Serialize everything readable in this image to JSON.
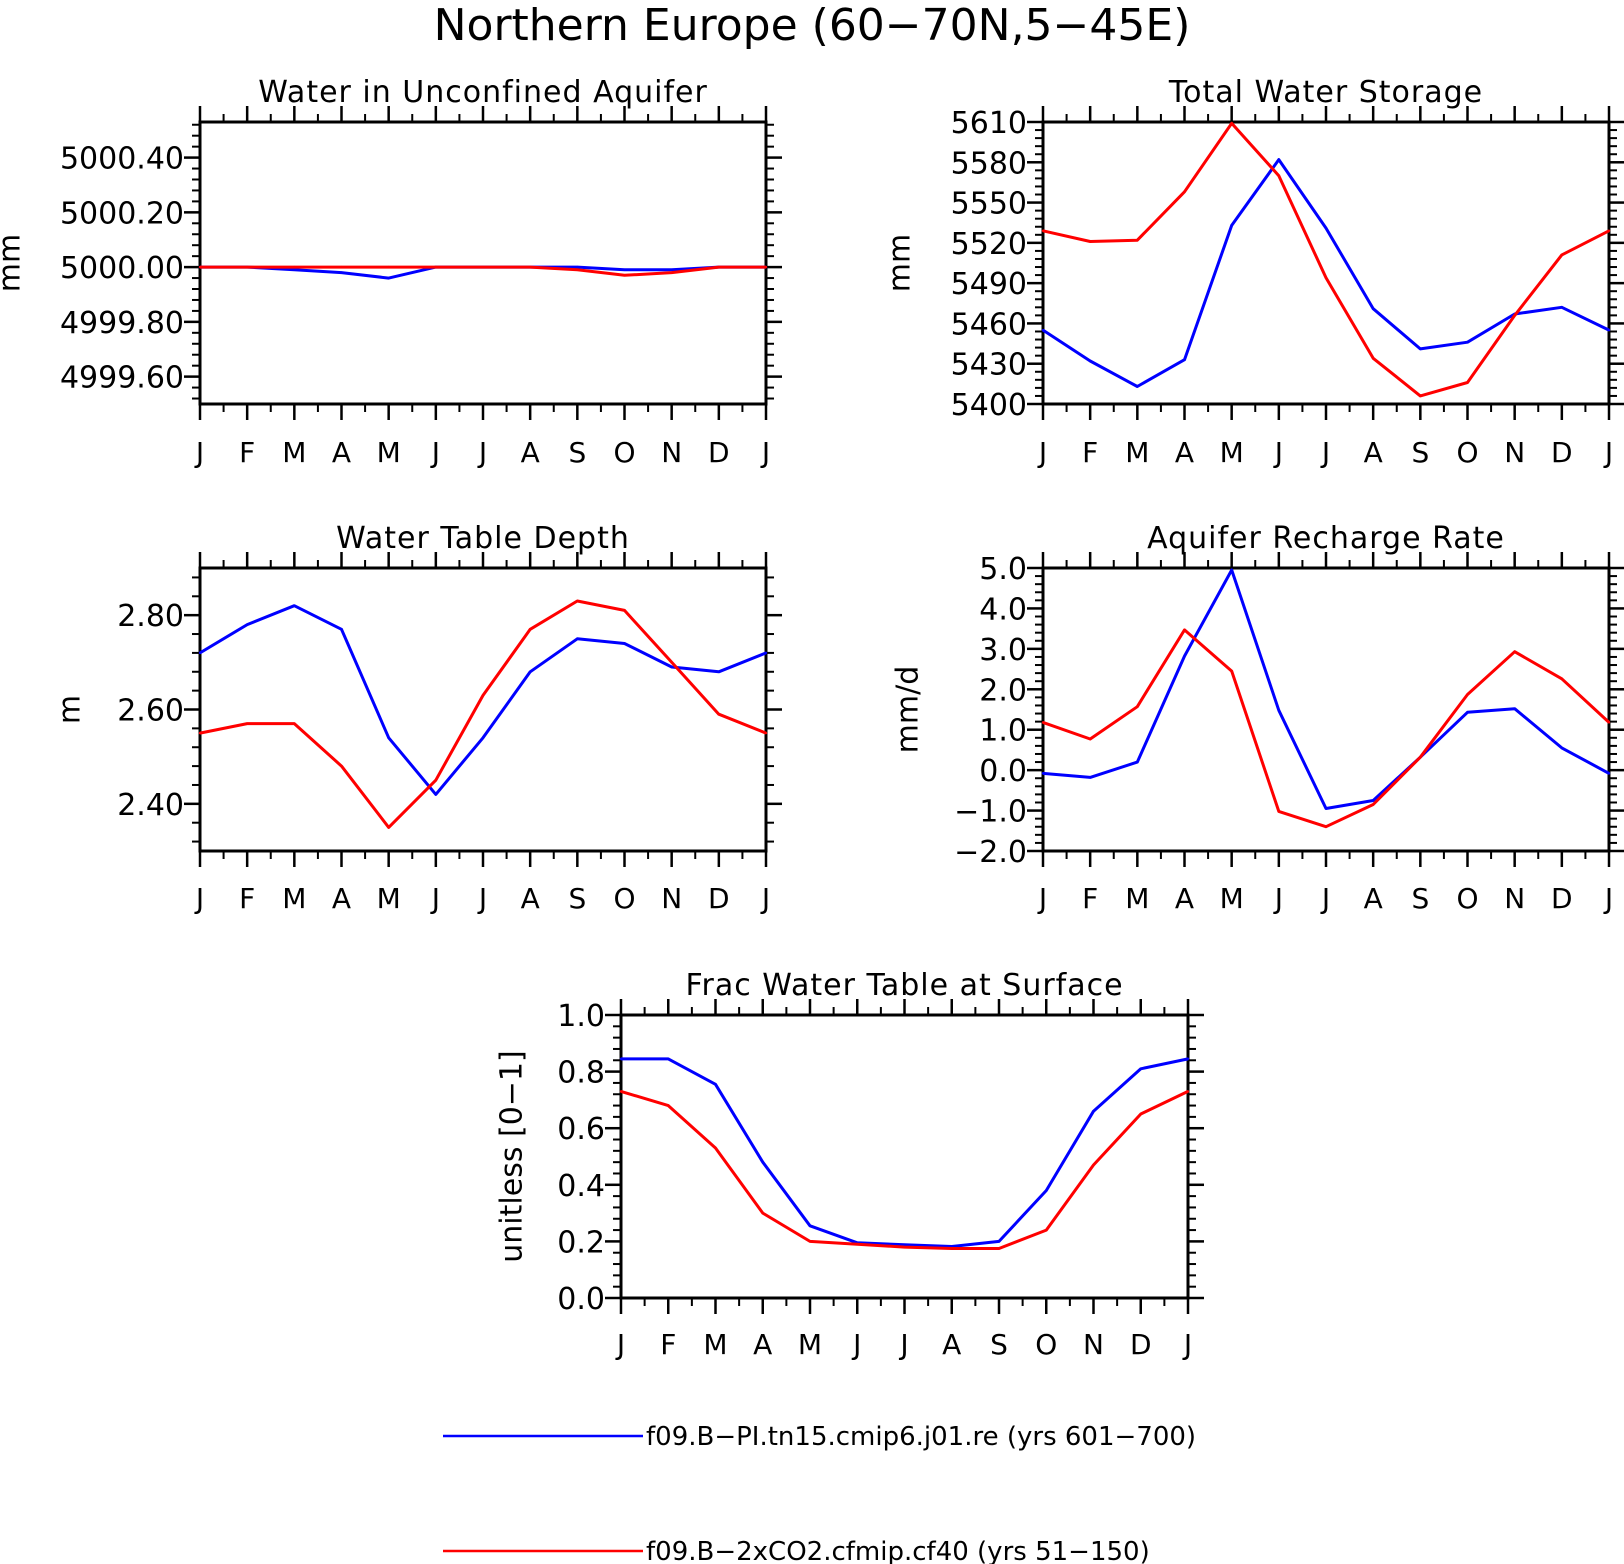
{
  "figure": {
    "title": "Northern Europe (60−70N,5−45E)",
    "legend_placement": "bottom",
    "series_colors": {
      "pi": "#0000ff",
      "co2": "#ff0000"
    }
  },
  "legend": [
    {
      "label": "f09.B−PI.tn15.cmip6.j01.re (yrs 601−700)",
      "color": "#0000ff"
    },
    {
      "label": "f09.B−2xCO2.cfmip.cf40 (yrs 51−150)",
      "color": "#ff0000"
    }
  ],
  "chart_data": [
    {
      "type": "line",
      "title": "Water in Unconfined Aquifer",
      "ylabel": "mm",
      "ylim": [
        4999.5,
        5000.53
      ],
      "yticks": [
        "5000.40",
        "5000.20",
        "5000.00",
        "4999.80",
        "4999.60"
      ],
      "ytick_values": [
        5000.4,
        5000.2,
        5000.0,
        4999.8,
        4999.6
      ],
      "categories": [
        "J",
        "F",
        "M",
        "A",
        "M",
        "J",
        "J",
        "A",
        "S",
        "O",
        "N",
        "D",
        "J"
      ],
      "series": [
        {
          "name": "f09.B−PI.tn15.cmip6.j01.re (yrs 601−700)",
          "color": "#0000ff",
          "values": [
            5000.0,
            5000.0,
            4999.99,
            4999.98,
            4999.96,
            5000.0,
            5000.0,
            5000.0,
            5000.0,
            4999.99,
            4999.99,
            5000.0,
            5000.0
          ]
        },
        {
          "name": "f09.B−2xCO2.cfmip.cf40 (yrs 51−150)",
          "color": "#ff0000",
          "values": [
            5000.0,
            5000.0,
            5000.0,
            5000.0,
            5000.0,
            5000.0,
            5000.0,
            5000.0,
            4999.99,
            4999.97,
            4999.98,
            5000.0,
            5000.0
          ]
        }
      ]
    },
    {
      "type": "line",
      "title": "Total Water Storage",
      "ylabel": "mm",
      "ylim": [
        5400,
        5610
      ],
      "yticks": [
        "5610",
        "5580",
        "5550",
        "5520",
        "5490",
        "5460",
        "5430",
        "5400"
      ],
      "ytick_values": [
        5610,
        5580,
        5550,
        5520,
        5490,
        5460,
        5430,
        5400
      ],
      "categories": [
        "J",
        "F",
        "M",
        "A",
        "M",
        "J",
        "J",
        "A",
        "S",
        "O",
        "N",
        "D",
        "J"
      ],
      "series": [
        {
          "name": "f09.B−PI.tn15.cmip6.j01.re (yrs 601−700)",
          "color": "#0000ff",
          "values": [
            5455,
            5432,
            5413,
            5433,
            5533,
            5582,
            5531,
            5471,
            5441,
            5446,
            5467,
            5472,
            5455
          ]
        },
        {
          "name": "f09.B−2xCO2.cfmip.cf40 (yrs 51−150)",
          "color": "#ff0000",
          "values": [
            5529,
            5521,
            5522,
            5558,
            5609,
            5570,
            5494,
            5434,
            5406,
            5416,
            5466,
            5511,
            5529
          ]
        }
      ]
    },
    {
      "type": "line",
      "title": "Water Table Depth",
      "ylabel": "m",
      "ylim": [
        2.3,
        2.9
      ],
      "yticks": [
        "2.80",
        "2.60",
        "2.40"
      ],
      "ytick_values": [
        2.8,
        2.6,
        2.4
      ],
      "categories": [
        "J",
        "F",
        "M",
        "A",
        "M",
        "J",
        "J",
        "A",
        "S",
        "O",
        "N",
        "D",
        "J"
      ],
      "series": [
        {
          "name": "f09.B−PI.tn15.cmip6.j01.re (yrs 601−700)",
          "color": "#0000ff",
          "values": [
            2.72,
            2.78,
            2.82,
            2.77,
            2.54,
            2.42,
            2.54,
            2.68,
            2.75,
            2.74,
            2.69,
            2.68,
            2.72
          ]
        },
        {
          "name": "f09.B−2xCO2.cfmip.cf40 (yrs 51−150)",
          "color": "#ff0000",
          "values": [
            2.55,
            2.57,
            2.57,
            2.48,
            2.35,
            2.45,
            2.63,
            2.77,
            2.83,
            2.81,
            2.7,
            2.59,
            2.55
          ]
        }
      ]
    },
    {
      "type": "line",
      "title": "Aquifer Recharge Rate",
      "ylabel": "mm/d",
      "ylim": [
        -2.0,
        5.0
      ],
      "yticks": [
        "5.0",
        "4.0",
        "3.0",
        "2.0",
        "1.0",
        "0.0",
        "−1.0",
        "−2.0"
      ],
      "ytick_values": [
        5,
        4,
        3,
        2,
        1,
        0,
        -1,
        -2
      ],
      "categories": [
        "J",
        "F",
        "M",
        "A",
        "M",
        "J",
        "J",
        "A",
        "S",
        "O",
        "N",
        "D",
        "J"
      ],
      "series": [
        {
          "name": "f09.B−PI.tn15.cmip6.j01.re (yrs 601−700)",
          "color": "#0000ff",
          "values": [
            -0.08,
            -0.18,
            0.2,
            2.82,
            4.95,
            1.48,
            -0.95,
            -0.75,
            0.32,
            1.43,
            1.52,
            0.55,
            -0.08
          ]
        },
        {
          "name": "f09.B−2xCO2.cfmip.cf40 (yrs 51−150)",
          "color": "#ff0000",
          "values": [
            1.18,
            0.77,
            1.57,
            3.47,
            2.45,
            -1.02,
            -1.4,
            -0.85,
            0.32,
            1.87,
            2.93,
            2.26,
            1.18
          ]
        }
      ]
    },
    {
      "type": "line",
      "title": "Frac Water Table at Surface",
      "ylabel": "unitless [0−1]",
      "ylim": [
        0.0,
        1.0
      ],
      "yticks": [
        "1.0",
        "0.8",
        "0.6",
        "0.4",
        "0.2",
        "0.0"
      ],
      "ytick_values": [
        1.0,
        0.8,
        0.6,
        0.4,
        0.2,
        0.0
      ],
      "categories": [
        "J",
        "F",
        "M",
        "A",
        "M",
        "J",
        "J",
        "A",
        "S",
        "O",
        "N",
        "D",
        "J"
      ],
      "series": [
        {
          "name": "f09.B−PI.tn15.cmip6.j01.re (yrs 601−700)",
          "color": "#0000ff",
          "values": [
            0.845,
            0.845,
            0.755,
            0.48,
            0.255,
            0.195,
            0.188,
            0.182,
            0.2,
            0.38,
            0.66,
            0.81,
            0.845
          ]
        },
        {
          "name": "f09.B−2xCO2.cfmip.cf40 (yrs 51−150)",
          "color": "#ff0000",
          "values": [
            0.73,
            0.68,
            0.53,
            0.3,
            0.2,
            0.19,
            0.18,
            0.175,
            0.175,
            0.24,
            0.47,
            0.65,
            0.73
          ]
        }
      ]
    }
  ]
}
